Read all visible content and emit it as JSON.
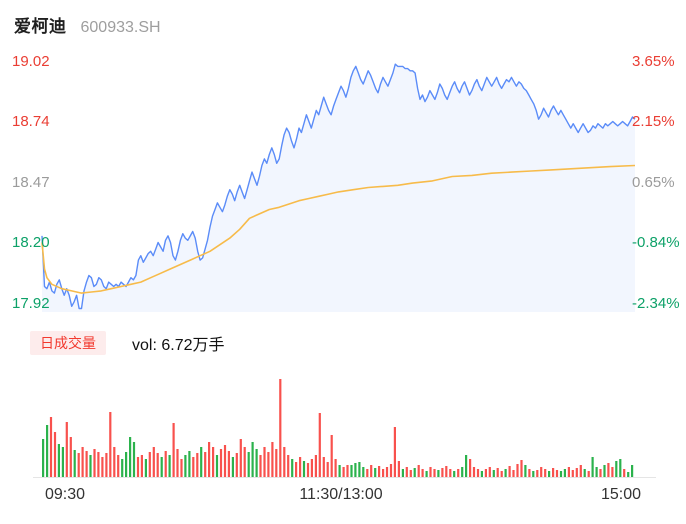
{
  "header": {
    "name": "爱柯迪",
    "code": "600933.SH"
  },
  "price_axis": {
    "labels": [
      {
        "text": "19.02",
        "state": "up"
      },
      {
        "text": "18.74",
        "state": "up"
      },
      {
        "text": "18.47",
        "state": "flat"
      },
      {
        "text": "18.20",
        "state": "down"
      },
      {
        "text": "17.92",
        "state": "down"
      }
    ]
  },
  "pct_axis": {
    "labels": [
      {
        "text": "3.65%",
        "state": "up"
      },
      {
        "text": "2.15%",
        "state": "up"
      },
      {
        "text": "0.65%",
        "state": "flat"
      },
      {
        "text": "-0.84%",
        "state": "down"
      },
      {
        "text": "-2.34%",
        "state": "down"
      }
    ]
  },
  "volume_header": {
    "badge": "日成交量",
    "vol_text": "vol: 6.72万手"
  },
  "time_axis": {
    "labels": [
      "09:30",
      "11:30/13:00",
      "15:00"
    ]
  },
  "colors": {
    "price_line": "#5b8cf8",
    "price_fill": "rgba(91,140,248,0.08)",
    "avg_line": "#f7bb4a",
    "vol_up": "#f8514d",
    "vol_down": "#2bb24c",
    "axis_up": "#ea3d33",
    "axis_down": "#0da168",
    "axis_flat": "#9b9b9b",
    "baseline": "#e5e5e5"
  },
  "chart_data": {
    "type": "line",
    "title": "爱柯迪 600933.SH 分时图 (intraday)",
    "x_axis": {
      "labels": [
        "09:30",
        "11:30/13:00",
        "15:00"
      ],
      "minutes_total": 240
    },
    "y_axis_price_ticks": [
      19.02,
      18.74,
      18.47,
      18.2,
      17.92
    ],
    "y_axis_pct_ticks": [
      "3.65%",
      "2.15%",
      "0.65%",
      "-0.84%",
      "-2.34%"
    ],
    "y_range": [
      17.884,
      19.052
    ],
    "grid": false,
    "legend": "none",
    "series": [
      {
        "name": "price",
        "interval_minutes": 1,
        "values": [
          18.23,
          18.0,
          17.99,
          18.02,
          17.98,
          17.97,
          18.01,
          18.03,
          17.99,
          17.96,
          17.99,
          17.96,
          17.91,
          17.93,
          17.96,
          17.9,
          17.9,
          17.98,
          18.02,
          18.05,
          18.04,
          18.0,
          18.01,
          18.04,
          18.03,
          18.0,
          17.99,
          18.02,
          18.01,
          18.0,
          18.01,
          18.0,
          18.02,
          18.01,
          18.0,
          18.02,
          18.04,
          18.03,
          18.05,
          18.12,
          18.14,
          18.11,
          18.13,
          18.15,
          18.16,
          18.14,
          18.17,
          18.2,
          18.18,
          18.16,
          18.21,
          18.23,
          18.2,
          18.14,
          18.12,
          18.16,
          18.21,
          18.24,
          18.22,
          18.21,
          18.23,
          18.25,
          18.22,
          18.16,
          18.12,
          18.13,
          18.17,
          18.21,
          18.27,
          18.32,
          18.35,
          18.38,
          18.36,
          18.34,
          18.37,
          18.41,
          18.44,
          18.42,
          18.39,
          18.43,
          18.46,
          18.43,
          18.4,
          18.44,
          18.48,
          18.52,
          18.49,
          18.46,
          18.5,
          18.55,
          18.58,
          18.56,
          18.6,
          18.63,
          18.6,
          18.56,
          18.58,
          18.64,
          18.69,
          18.72,
          18.7,
          18.66,
          18.63,
          18.67,
          18.72,
          18.7,
          18.74,
          18.78,
          18.75,
          18.72,
          18.76,
          18.8,
          18.78,
          18.82,
          18.86,
          18.83,
          18.8,
          18.78,
          18.82,
          18.85,
          18.88,
          18.91,
          18.89,
          18.86,
          18.9,
          18.95,
          18.98,
          19.0,
          18.97,
          18.94,
          18.92,
          18.95,
          18.98,
          18.96,
          18.93,
          18.9,
          18.88,
          18.92,
          18.95,
          18.93,
          18.91,
          18.94,
          18.97,
          19.01,
          19.0,
          19.0,
          19.0,
          18.99,
          18.99,
          18.98,
          18.98,
          18.97,
          18.9,
          18.85,
          18.87,
          18.84,
          18.86,
          18.89,
          18.87,
          18.85,
          18.88,
          18.92,
          18.9,
          18.87,
          18.85,
          18.88,
          18.91,
          18.93,
          18.9,
          18.88,
          18.91,
          18.93,
          18.9,
          18.87,
          18.89,
          18.92,
          18.94,
          18.91,
          18.89,
          18.92,
          18.95,
          18.93,
          18.91,
          18.93,
          18.95,
          18.92,
          18.9,
          18.92,
          18.94,
          18.93,
          18.95,
          18.93,
          18.91,
          18.93,
          18.92,
          18.9,
          18.89,
          18.87,
          18.85,
          18.83,
          18.8,
          18.76,
          18.78,
          18.81,
          18.79,
          18.77,
          18.8,
          18.82,
          18.8,
          18.78,
          18.8,
          18.78,
          18.76,
          18.74,
          18.72,
          18.74,
          18.72,
          18.7,
          18.72,
          18.74,
          18.72,
          18.7,
          18.71,
          18.73,
          18.72,
          18.74,
          18.73,
          18.72,
          18.74,
          18.73,
          18.74,
          18.75,
          18.74,
          18.73,
          18.74,
          18.75,
          18.74,
          18.73,
          18.75,
          18.77,
          18.76
        ]
      },
      {
        "name": "avg_price",
        "points": [
          [
            0,
            18.2
          ],
          [
            1,
            18.08
          ],
          [
            2,
            18.04
          ],
          [
            4,
            18.01
          ],
          [
            8,
            17.99
          ],
          [
            12,
            17.98
          ],
          [
            16,
            17.97
          ],
          [
            20,
            17.975
          ],
          [
            24,
            17.98
          ],
          [
            28,
            17.99
          ],
          [
            32,
            18.0
          ],
          [
            36,
            18.01
          ],
          [
            40,
            18.02
          ],
          [
            44,
            18.04
          ],
          [
            48,
            18.06
          ],
          [
            52,
            18.08
          ],
          [
            56,
            18.1
          ],
          [
            60,
            18.12
          ],
          [
            64,
            18.14
          ],
          [
            68,
            18.16
          ],
          [
            72,
            18.19
          ],
          [
            76,
            18.22
          ],
          [
            80,
            18.26
          ],
          [
            84,
            18.31
          ],
          [
            88,
            18.33
          ],
          [
            92,
            18.35
          ],
          [
            96,
            18.36
          ],
          [
            100,
            18.375
          ],
          [
            104,
            18.39
          ],
          [
            108,
            18.4
          ],
          [
            112,
            18.41
          ],
          [
            116,
            18.42
          ],
          [
            120,
            18.43
          ],
          [
            126,
            18.44
          ],
          [
            132,
            18.45
          ],
          [
            138,
            18.455
          ],
          [
            144,
            18.46
          ],
          [
            150,
            18.47
          ],
          [
            158,
            18.48
          ],
          [
            166,
            18.5
          ],
          [
            174,
            18.505
          ],
          [
            182,
            18.515
          ],
          [
            190,
            18.52
          ],
          [
            198,
            18.525
          ],
          [
            206,
            18.53
          ],
          [
            214,
            18.535
          ],
          [
            222,
            18.54
          ],
          [
            230,
            18.545
          ],
          [
            240,
            18.55
          ]
        ]
      }
    ],
    "volume": {
      "total_label": "vol: 6.72万手",
      "height_unit": "px-estimate",
      "bars": [
        [
          38,
          "g"
        ],
        [
          52,
          "g"
        ],
        [
          60,
          "r"
        ],
        [
          45,
          "r"
        ],
        [
          33,
          "g"
        ],
        [
          30,
          "g"
        ],
        [
          55,
          "r"
        ],
        [
          40,
          "r"
        ],
        [
          27,
          "g"
        ],
        [
          24,
          "r"
        ],
        [
          30,
          "r"
        ],
        [
          26,
          "r"
        ],
        [
          22,
          "g"
        ],
        [
          28,
          "r"
        ],
        [
          25,
          "r"
        ],
        [
          20,
          "r"
        ],
        [
          24,
          "r"
        ],
        [
          65,
          "r"
        ],
        [
          30,
          "r"
        ],
        [
          22,
          "r"
        ],
        [
          18,
          "g"
        ],
        [
          25,
          "g"
        ],
        [
          40,
          "g"
        ],
        [
          35,
          "g"
        ],
        [
          20,
          "r"
        ],
        [
          22,
          "r"
        ],
        [
          18,
          "g"
        ],
        [
          25,
          "r"
        ],
        [
          30,
          "r"
        ],
        [
          24,
          "r"
        ],
        [
          20,
          "g"
        ],
        [
          26,
          "r"
        ],
        [
          22,
          "g"
        ],
        [
          54,
          "r"
        ],
        [
          28,
          "r"
        ],
        [
          18,
          "r"
        ],
        [
          22,
          "g"
        ],
        [
          26,
          "g"
        ],
        [
          20,
          "r"
        ],
        [
          24,
          "r"
        ],
        [
          30,
          "g"
        ],
        [
          25,
          "r"
        ],
        [
          35,
          "r"
        ],
        [
          30,
          "r"
        ],
        [
          22,
          "g"
        ],
        [
          28,
          "r"
        ],
        [
          32,
          "r"
        ],
        [
          26,
          "r"
        ],
        [
          20,
          "g"
        ],
        [
          24,
          "r"
        ],
        [
          38,
          "r"
        ],
        [
          30,
          "r"
        ],
        [
          25,
          "g"
        ],
        [
          35,
          "g"
        ],
        [
          28,
          "g"
        ],
        [
          22,
          "r"
        ],
        [
          30,
          "r"
        ],
        [
          25,
          "r"
        ],
        [
          35,
          "r"
        ],
        [
          28,
          "r"
        ],
        [
          98,
          "r"
        ],
        [
          30,
          "r"
        ],
        [
          22,
          "r"
        ],
        [
          18,
          "g"
        ],
        [
          15,
          "r"
        ],
        [
          20,
          "r"
        ],
        [
          16,
          "g"
        ],
        [
          14,
          "r"
        ],
        [
          18,
          "r"
        ],
        [
          22,
          "r"
        ],
        [
          64,
          "r"
        ],
        [
          20,
          "r"
        ],
        [
          15,
          "r"
        ],
        [
          42,
          "r"
        ],
        [
          18,
          "r"
        ],
        [
          12,
          "g"
        ],
        [
          10,
          "r"
        ],
        [
          12,
          "r"
        ],
        [
          12,
          "g"
        ],
        [
          14,
          "g"
        ],
        [
          15,
          "g"
        ],
        [
          10,
          "g"
        ],
        [
          8,
          "r"
        ],
        [
          12,
          "r"
        ],
        [
          9,
          "g"
        ],
        [
          11,
          "r"
        ],
        [
          8,
          "r"
        ],
        [
          10,
          "r"
        ],
        [
          13,
          "r"
        ],
        [
          50,
          "r"
        ],
        [
          16,
          "r"
        ],
        [
          8,
          "g"
        ],
        [
          10,
          "r"
        ],
        [
          7,
          "r"
        ],
        [
          9,
          "g"
        ],
        [
          12,
          "r"
        ],
        [
          8,
          "r"
        ],
        [
          6,
          "g"
        ],
        [
          10,
          "r"
        ],
        [
          8,
          "r"
        ],
        [
          7,
          "g"
        ],
        [
          9,
          "r"
        ],
        [
          11,
          "r"
        ],
        [
          8,
          "r"
        ],
        [
          6,
          "g"
        ],
        [
          8,
          "r"
        ],
        [
          10,
          "g"
        ],
        [
          22,
          "g"
        ],
        [
          18,
          "r"
        ],
        [
          10,
          "r"
        ],
        [
          8,
          "r"
        ],
        [
          6,
          "g"
        ],
        [
          8,
          "r"
        ],
        [
          10,
          "r"
        ],
        [
          7,
          "g"
        ],
        [
          9,
          "r"
        ],
        [
          6,
          "r"
        ],
        [
          8,
          "g"
        ],
        [
          11,
          "r"
        ],
        [
          7,
          "r"
        ],
        [
          13,
          "r"
        ],
        [
          17,
          "r"
        ],
        [
          12,
          "g"
        ],
        [
          8,
          "r"
        ],
        [
          6,
          "g"
        ],
        [
          7,
          "r"
        ],
        [
          10,
          "r"
        ],
        [
          8,
          "r"
        ],
        [
          6,
          "g"
        ],
        [
          9,
          "r"
        ],
        [
          7,
          "r"
        ],
        [
          6,
          "g"
        ],
        [
          8,
          "g"
        ],
        [
          10,
          "r"
        ],
        [
          7,
          "r"
        ],
        [
          9,
          "r"
        ],
        [
          12,
          "r"
        ],
        [
          8,
          "g"
        ],
        [
          6,
          "r"
        ],
        [
          20,
          "g"
        ],
        [
          10,
          "g"
        ],
        [
          8,
          "r"
        ],
        [
          12,
          "g"
        ],
        [
          14,
          "r"
        ],
        [
          10,
          "r"
        ],
        [
          16,
          "g"
        ],
        [
          18,
          "g"
        ],
        [
          8,
          "r"
        ],
        [
          5,
          "g"
        ],
        [
          12,
          "g"
        ]
      ]
    }
  }
}
